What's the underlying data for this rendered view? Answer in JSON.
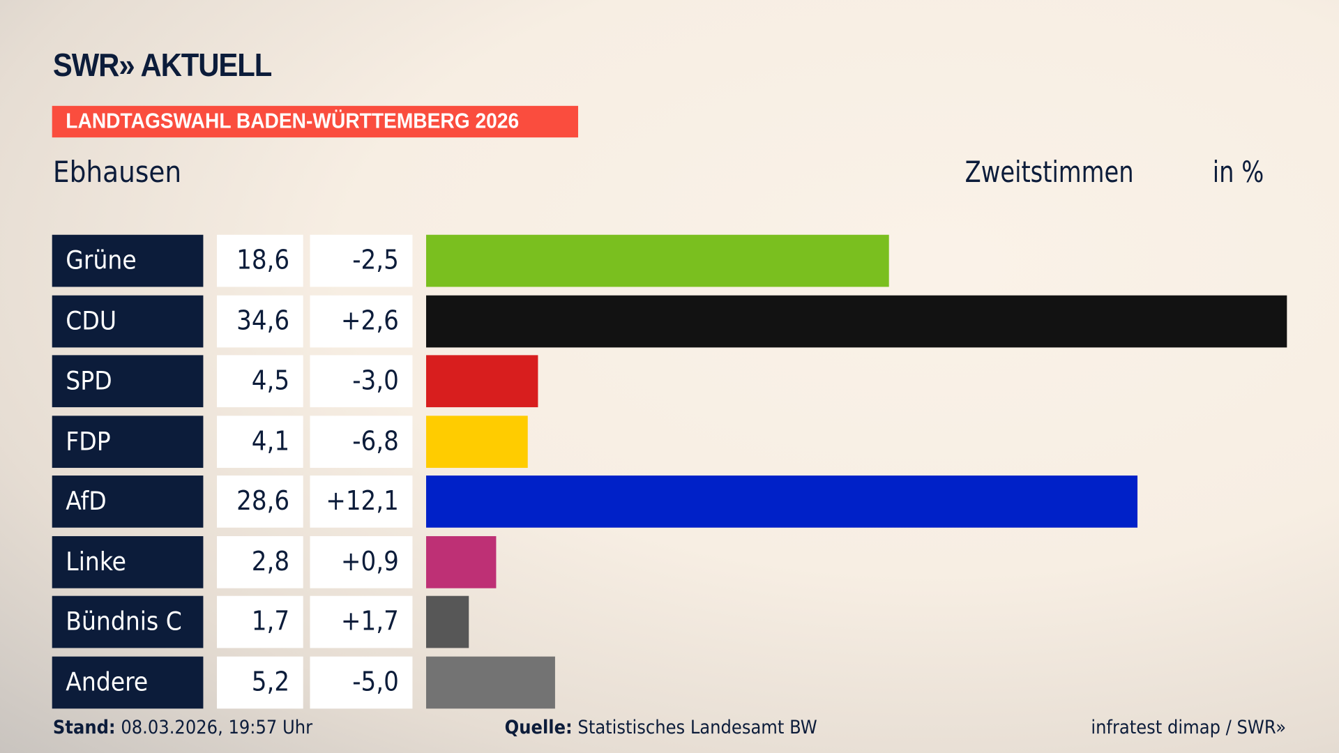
{
  "header": {
    "logo": "SWR» AKTUELL",
    "banner": "LANDTAGSWAHL BADEN-WÜRTTEMBERG 2026",
    "place": "Ebhausen",
    "measure": "Zweitstimmen",
    "unit": "in %"
  },
  "chart_data": {
    "type": "bar",
    "orientation": "horizontal",
    "xlim": [
      0,
      34.6
    ],
    "categories": [
      "Grüne",
      "CDU",
      "SPD",
      "FDP",
      "AfD",
      "Linke",
      "Bündnis C",
      "Andere"
    ],
    "values_display": [
      "18,6",
      "34,6",
      "4,5",
      "4,1",
      "28,6",
      "2,8",
      "1,7",
      "5,2"
    ],
    "values": [
      18.6,
      34.6,
      4.5,
      4.1,
      28.6,
      2.8,
      1.7,
      5.2
    ],
    "diff_display": [
      "-2,5",
      "+2,6",
      "-3,0",
      "-6,8",
      "+12,1",
      "+0,9",
      "+1,7",
      "-5,0"
    ],
    "diffs": [
      -2.5,
      2.6,
      -3.0,
      -6.8,
      12.1,
      0.9,
      1.7,
      -5.0
    ],
    "colors": [
      "#7abf1f",
      "#121212",
      "#d81e1e",
      "#ffcc00",
      "#0021c8",
      "#be3075",
      "#575757",
      "#737373"
    ]
  },
  "footer": {
    "stand_label": "Stand:",
    "stand_value": "08.03.2026, 19:57 Uhr",
    "quelle_label": "Quelle:",
    "quelle_value": "Statistisches Landesamt BW",
    "credit": "infratest dimap / SWR»"
  }
}
